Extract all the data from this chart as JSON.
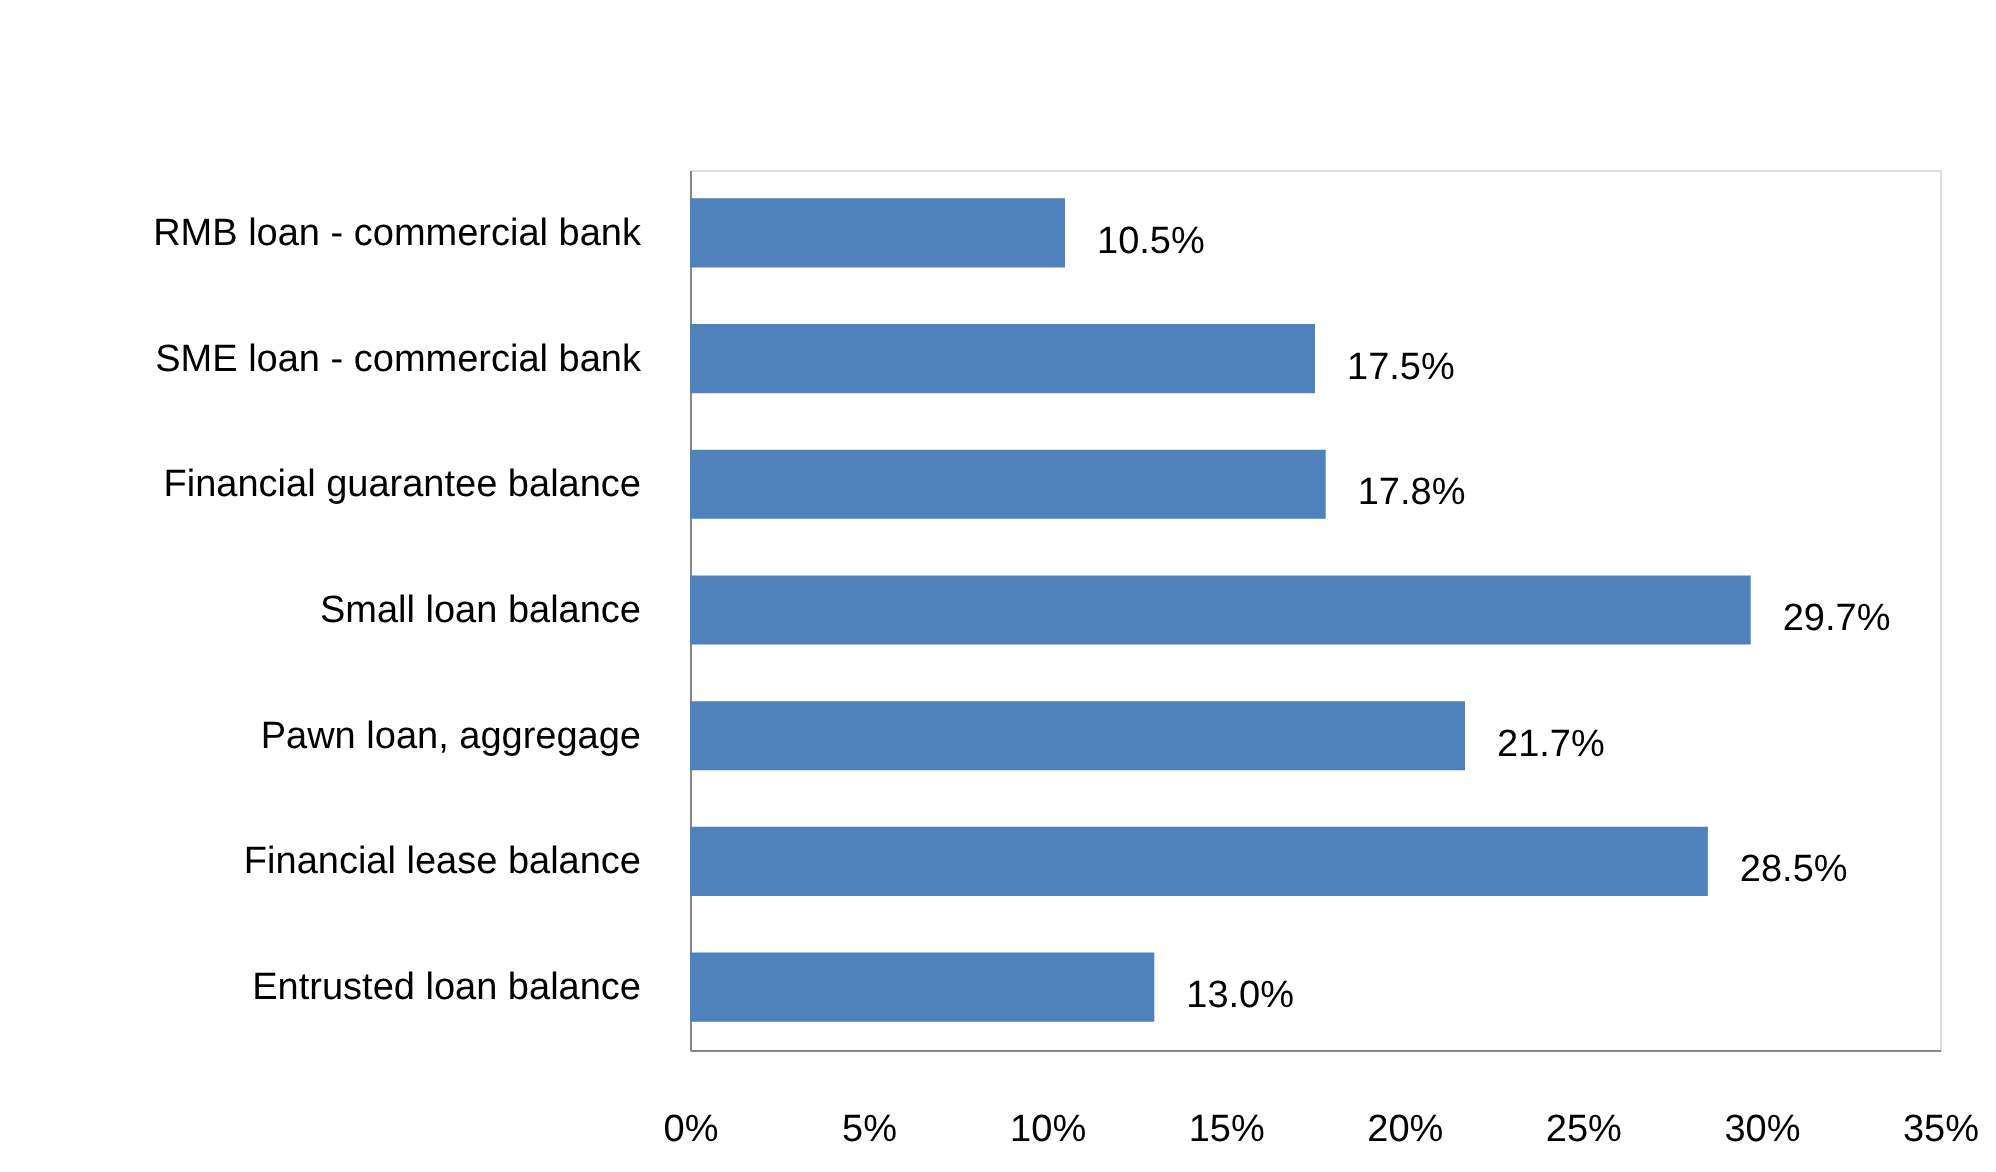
{
  "chart_data": {
    "type": "bar",
    "orientation": "horizontal",
    "categories": [
      "RMB loan - commercial bank",
      "SME loan - commercial bank",
      "Financial guarantee balance",
      "Small loan balance",
      "Pawn loan, aggregage",
      "Financial lease balance",
      "Entrusted loan balance"
    ],
    "values": [
      10.5,
      17.5,
      17.8,
      29.7,
      21.7,
      28.5,
      13.0
    ],
    "value_labels": [
      "10.5%",
      "17.5%",
      "17.8%",
      "29.7%",
      "21.7%",
      "28.5%",
      "13.0%"
    ],
    "color": "#4f81bd",
    "xlim": [
      0,
      35
    ],
    "xticks": [
      {
        "value": 0,
        "label": "0%"
      },
      {
        "value": 5,
        "label": "5%"
      },
      {
        "value": 10,
        "label": "10%"
      },
      {
        "value": 15,
        "label": "15%"
      },
      {
        "value": 20,
        "label": "20%"
      },
      {
        "value": 25,
        "label": "25%"
      },
      {
        "value": 30,
        "label": "30%"
      },
      {
        "value": 35,
        "label": "35%"
      }
    ],
    "grid": false
  }
}
